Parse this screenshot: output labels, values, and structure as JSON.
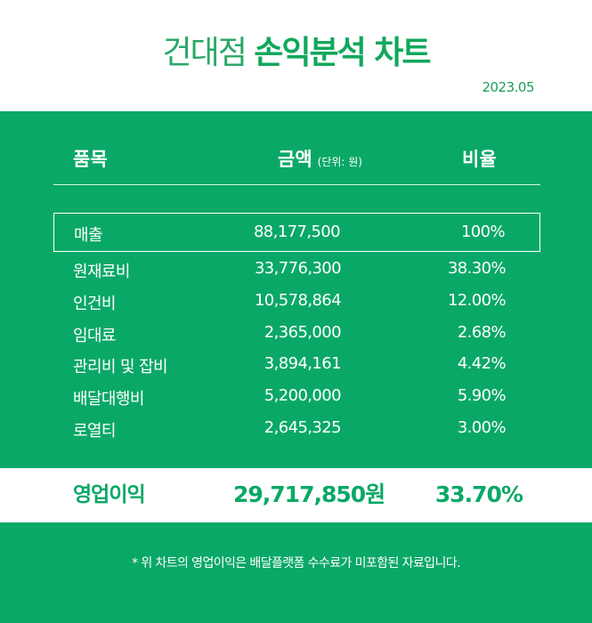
{
  "header": {
    "title_light": "건대점",
    "title_bold": "손익분석 차트",
    "date": "2023.05"
  },
  "table": {
    "col_item": "품목",
    "col_amount": "금액",
    "col_amount_unit": "(단위: 원)",
    "col_ratio": "비율",
    "rows": [
      {
        "item": "매출",
        "amount": "88,177,500",
        "ratio": "100%"
      },
      {
        "item": "원재료비",
        "amount": "33,776,300",
        "ratio": "38.30%"
      },
      {
        "item": "인건비",
        "amount": "10,578,864",
        "ratio": "12.00%"
      },
      {
        "item": "임대료",
        "amount": "2,365,000",
        "ratio": "2.68%"
      },
      {
        "item": "관리비 및 잡비",
        "amount": "3,894,161",
        "ratio": "4.42%"
      },
      {
        "item": "배달대행비",
        "amount": "5,200,000",
        "ratio": "5.90%"
      },
      {
        "item": "로열티",
        "amount": "2,645,325",
        "ratio": "3.00%"
      }
    ]
  },
  "summary": {
    "label": "영업이익",
    "amount": "29,717,850원",
    "ratio": "33.70%"
  },
  "footnote": "* 위 차트의 영업이익은 배달플랫폼 수수료가 미포함된 자료입니다.",
  "colors": {
    "brand_green": "#0aa866",
    "white": "#ffffff"
  }
}
